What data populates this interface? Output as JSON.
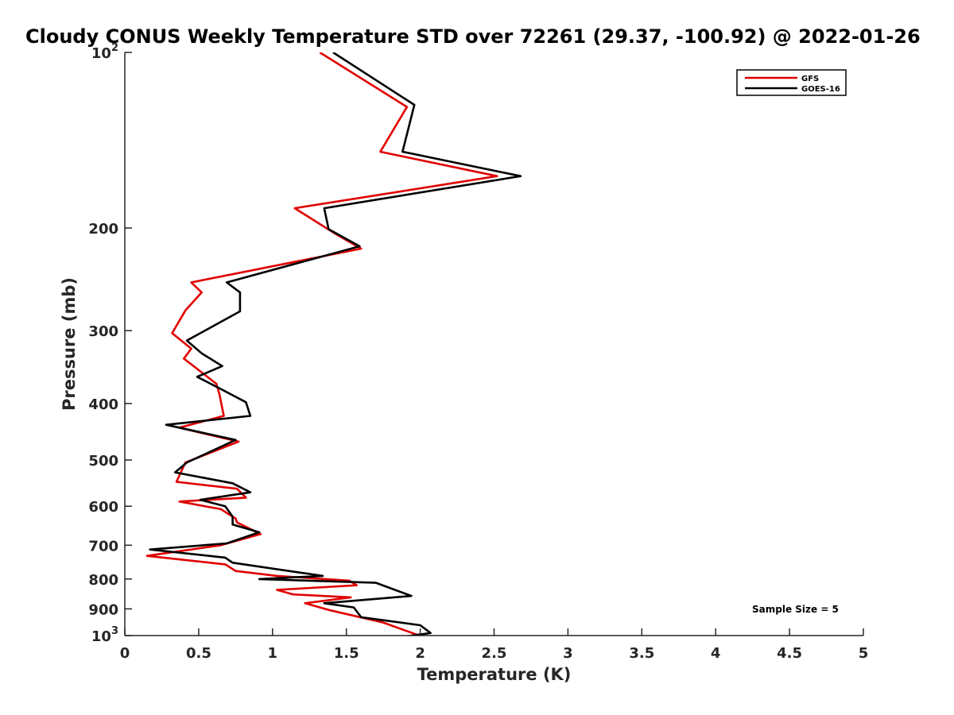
{
  "chart_data": {
    "type": "line",
    "title": "Cloudy CONUS Weekly Temperature STD over 72261 (29.37, -100.92) @ 2022-01-26",
    "xlabel": "Temperature (K)",
    "ylabel": "Pressure (mb)",
    "xlim": [
      0,
      5
    ],
    "ylim": [
      100,
      1000
    ],
    "y_scale": "log",
    "y_reversed": true,
    "x_ticks": [
      "0",
      "0.5",
      "1",
      "1.5",
      "2",
      "2.5",
      "3",
      "3.5",
      "4",
      "4.5",
      "5"
    ],
    "y_ticks": [
      {
        "value": 100,
        "base": "10",
        "exp": "2"
      },
      {
        "value": 200,
        "label": "200"
      },
      {
        "value": 300,
        "label": "300"
      },
      {
        "value": 400,
        "label": "400"
      },
      {
        "value": 500,
        "label": "500"
      },
      {
        "value": 600,
        "label": "600"
      },
      {
        "value": 700,
        "label": "700"
      },
      {
        "value": 800,
        "label": "800"
      },
      {
        "value": 900,
        "label": "900"
      },
      {
        "value": 1000,
        "base": "10",
        "exp": "3"
      }
    ],
    "legend_position": "top-right",
    "grid": false,
    "annotation": "Sample Size = 5",
    "series": [
      {
        "name": "GFS",
        "color": "#e00000",
        "x": [
          1.32,
          1.91,
          1.73,
          2.52,
          1.15,
          1.43,
          1.6,
          0.45,
          0.52,
          0.41,
          0.32,
          0.45,
          0.4,
          0.62,
          0.64,
          0.67,
          0.37,
          0.77,
          0.41,
          0.35,
          0.76,
          0.82,
          0.37,
          0.65,
          0.75,
          0.76,
          0.92,
          0.65,
          0.15,
          0.68,
          0.75,
          1.03,
          1.52,
          1.57,
          1.03,
          1.14,
          1.53,
          1.22,
          1.39,
          1.75,
          2.07
        ],
        "y": [
          100,
          124,
          148,
          163,
          185,
          205,
          217,
          248,
          258,
          277,
          303,
          322,
          335,
          370,
          385,
          420,
          440,
          465,
          505,
          545,
          560,
          580,
          589,
          607,
          630,
          640,
          670,
          700,
          730,
          755,
          775,
          790,
          805,
          820,
          835,
          850,
          860,
          880,
          905,
          950,
          1016
        ]
      },
      {
        "name": "GOES-16",
        "color": "#000000",
        "x": [
          1.41,
          1.96,
          1.88,
          2.68,
          1.35,
          1.38,
          1.59,
          0.69,
          0.78,
          0.78,
          0.42,
          0.52,
          0.66,
          0.49,
          0.67,
          0.82,
          0.85,
          0.28,
          0.75,
          0.42,
          0.34,
          0.73,
          0.85,
          0.51,
          0.68,
          0.73,
          0.73,
          0.91,
          0.69,
          0.17,
          0.68,
          0.73,
          1.34,
          0.91,
          1.7,
          1.94,
          1.35,
          1.55,
          1.6,
          2.0,
          2.07,
          1.7
        ],
        "y": [
          100,
          123,
          148,
          163,
          185,
          201,
          215,
          248,
          258,
          278,
          312,
          328,
          345,
          360,
          380,
          398,
          420,
          435,
          462,
          505,
          525,
          548,
          568,
          585,
          600,
          625,
          645,
          665,
          695,
          712,
          735,
          750,
          790,
          800,
          812,
          855,
          880,
          895,
          930,
          960,
          990,
          1020
        ]
      }
    ]
  }
}
